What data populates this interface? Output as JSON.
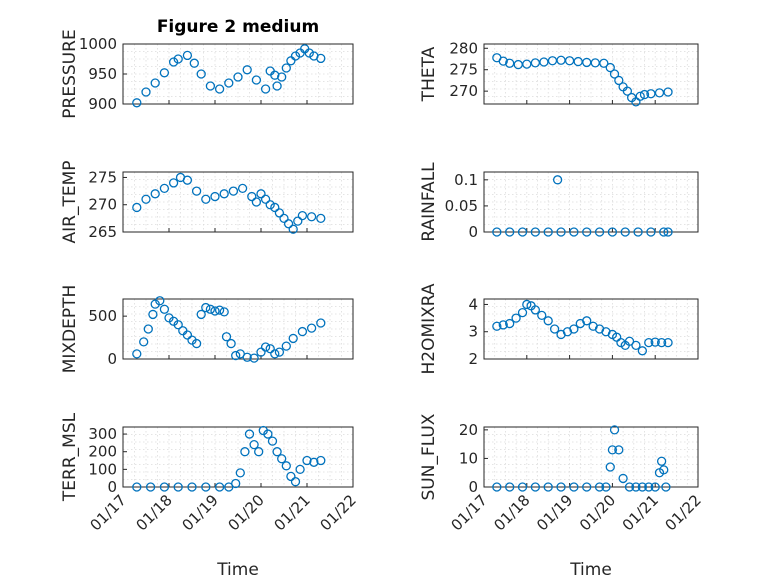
{
  "chart_data": [
    {
      "id": "pressure",
      "type": "scatter",
      "title": "Figure 2 medium",
      "ylabel": "PRESSURE",
      "ylim": [
        900,
        1000
      ],
      "yticks": [
        900,
        950,
        1000
      ],
      "yticklabels": [
        "900",
        "950",
        "1000"
      ],
      "x": [
        0.3,
        0.5,
        0.7,
        0.9,
        1.1,
        1.2,
        1.4,
        1.55,
        1.7,
        1.9,
        2.1,
        2.3,
        2.5,
        2.7,
        2.9,
        3.1,
        3.2,
        3.3,
        3.35,
        3.45,
        3.55,
        3.65,
        3.75,
        3.85,
        3.95,
        4.05,
        4.15,
        4.3
      ],
      "y": [
        902,
        920,
        935,
        952,
        970,
        975,
        981,
        968,
        950,
        930,
        925,
        935,
        945,
        957,
        940,
        925,
        955,
        948,
        930,
        945,
        960,
        972,
        980,
        985,
        992,
        985,
        980,
        976
      ]
    },
    {
      "id": "theta",
      "type": "scatter",
      "ylabel": "THETA",
      "ylim": [
        267,
        281
      ],
      "yticks": [
        270,
        275,
        280
      ],
      "yticklabels": [
        "270",
        "275",
        "280"
      ],
      "x": [
        0.3,
        0.45,
        0.6,
        0.8,
        1.0,
        1.2,
        1.4,
        1.6,
        1.8,
        2.0,
        2.2,
        2.4,
        2.6,
        2.8,
        2.95,
        3.05,
        3.15,
        3.25,
        3.35,
        3.45,
        3.55,
        3.65,
        3.75,
        3.9,
        4.1,
        4.3
      ],
      "y": [
        277.8,
        277.0,
        276.5,
        276.2,
        276.3,
        276.6,
        276.8,
        277.1,
        277.2,
        277.1,
        276.9,
        276.7,
        276.6,
        276.5,
        275.5,
        274.0,
        272.5,
        271.0,
        270.0,
        268.5,
        267.5,
        268.8,
        269.2,
        269.4,
        269.6,
        269.8
      ]
    },
    {
      "id": "air_temp",
      "type": "scatter",
      "ylabel": "AIR_TEMP",
      "ylim": [
        265,
        276
      ],
      "yticks": [
        265,
        270,
        275
      ],
      "yticklabels": [
        "265",
        "270",
        "275"
      ],
      "x": [
        0.3,
        0.5,
        0.7,
        0.9,
        1.1,
        1.25,
        1.4,
        1.6,
        1.8,
        2.0,
        2.2,
        2.4,
        2.6,
        2.8,
        2.9,
        3.0,
        3.1,
        3.2,
        3.3,
        3.4,
        3.5,
        3.6,
        3.7,
        3.8,
        3.9,
        4.1,
        4.3
      ],
      "y": [
        269.5,
        271.0,
        272.0,
        273.0,
        274.0,
        275.0,
        274.5,
        272.5,
        271.0,
        271.5,
        272.0,
        272.5,
        273.0,
        271.5,
        270.5,
        272.0,
        271.0,
        270.0,
        269.5,
        268.5,
        267.5,
        266.5,
        265.5,
        267.0,
        268.0,
        267.8,
        267.5
      ]
    },
    {
      "id": "rainfall",
      "type": "scatter",
      "ylabel": "RAINFALL",
      "ylim": [
        0,
        0.115
      ],
      "yticks": [
        0,
        0.05,
        0.1
      ],
      "yticklabels": [
        "0",
        "0.05",
        "0.1"
      ],
      "x": [
        0.3,
        0.6,
        0.9,
        1.2,
        1.5,
        1.8,
        2.1,
        2.4,
        2.7,
        3.0,
        3.3,
        3.6,
        3.9,
        4.2,
        4.3,
        1.72
      ],
      "y": [
        0,
        0,
        0,
        0,
        0,
        0,
        0,
        0,
        0,
        0,
        0,
        0,
        0,
        0,
        0,
        0.1
      ]
    },
    {
      "id": "mixdepth",
      "type": "scatter",
      "ylabel": "MIXDEPTH",
      "ylim": [
        0,
        700
      ],
      "yticks": [
        0,
        500
      ],
      "yticklabels": [
        "0",
        "500"
      ],
      "x": [
        0.3,
        0.45,
        0.55,
        0.65,
        0.7,
        0.8,
        0.9,
        1.0,
        1.1,
        1.2,
        1.3,
        1.4,
        1.5,
        1.6,
        1.7,
        1.8,
        1.9,
        2.0,
        2.1,
        2.2,
        2.25,
        2.35,
        2.45,
        2.55,
        2.7,
        2.85,
        3.0,
        3.1,
        3.2,
        3.3,
        3.4,
        3.55,
        3.7,
        3.9,
        4.1,
        4.3
      ],
      "y": [
        60,
        200,
        350,
        520,
        640,
        680,
        580,
        480,
        440,
        400,
        330,
        280,
        220,
        180,
        520,
        600,
        580,
        560,
        570,
        550,
        260,
        180,
        40,
        60,
        20,
        10,
        80,
        140,
        120,
        60,
        80,
        150,
        240,
        320,
        360,
        420
      ]
    },
    {
      "id": "h2omixra",
      "type": "scatter",
      "ylabel": "H2OMIXRA",
      "ylim": [
        2,
        4.2
      ],
      "yticks": [
        2,
        3,
        4
      ],
      "yticklabels": [
        "2",
        "3",
        "4"
      ],
      "x": [
        0.3,
        0.45,
        0.6,
        0.75,
        0.9,
        1.0,
        1.1,
        1.2,
        1.35,
        1.5,
        1.65,
        1.8,
        1.95,
        2.1,
        2.25,
        2.4,
        2.55,
        2.7,
        2.85,
        3.0,
        3.1,
        3.2,
        3.3,
        3.4,
        3.55,
        3.7,
        3.85,
        4.0,
        4.15,
        4.3
      ],
      "y": [
        3.2,
        3.25,
        3.3,
        3.5,
        3.7,
        4.0,
        3.95,
        3.8,
        3.6,
        3.4,
        3.1,
        2.9,
        3.0,
        3.1,
        3.3,
        3.4,
        3.2,
        3.1,
        3.0,
        2.9,
        2.8,
        2.6,
        2.5,
        2.65,
        2.5,
        2.3,
        2.6,
        2.62,
        2.6,
        2.6
      ]
    },
    {
      "id": "terr_msl",
      "type": "scatter",
      "ylabel": "TERR_MSL",
      "ylim": [
        0,
        340
      ],
      "yticks": [
        0,
        100,
        200,
        300
      ],
      "yticklabels": [
        "0",
        "100",
        "200",
        "300"
      ],
      "x": [
        0.3,
        0.6,
        0.9,
        1.2,
        1.5,
        1.8,
        2.1,
        2.3,
        2.45,
        2.55,
        2.65,
        2.75,
        2.85,
        2.95,
        3.05,
        3.15,
        3.25,
        3.35,
        3.45,
        3.55,
        3.65,
        3.75,
        3.85,
        4.0,
        4.15,
        4.3
      ],
      "y": [
        0,
        0,
        0,
        0,
        0,
        0,
        0,
        0,
        20,
        80,
        200,
        300,
        240,
        200,
        320,
        300,
        260,
        200,
        160,
        120,
        60,
        30,
        100,
        150,
        140,
        150
      ]
    },
    {
      "id": "sun_flux",
      "type": "scatter",
      "ylabel": "SUN_FLUX",
      "ylim": [
        0,
        21
      ],
      "yticks": [
        0,
        10,
        20
      ],
      "yticklabels": [
        "0",
        "10",
        "20"
      ],
      "x": [
        0.3,
        0.6,
        0.9,
        1.2,
        1.5,
        1.8,
        2.1,
        2.4,
        2.7,
        2.85,
        2.95,
        3.0,
        3.05,
        3.15,
        3.25,
        3.4,
        3.55,
        3.7,
        3.85,
        4.0,
        4.1,
        4.15,
        4.2,
        4.25
      ],
      "y": [
        0,
        0,
        0,
        0,
        0,
        0,
        0,
        0,
        0,
        0,
        7,
        13,
        20,
        13,
        3,
        0,
        0,
        0,
        0,
        0,
        5,
        9,
        6,
        0
      ]
    }
  ],
  "xaxis": {
    "xlim": [
      0,
      5
    ],
    "tick_values": [
      0,
      1,
      2,
      3,
      4,
      5
    ],
    "tick_labels": [
      "01/17",
      "01/18",
      "01/19",
      "01/20",
      "01/21",
      "01/22"
    ],
    "xlabel": "Time"
  },
  "colors": {
    "marker": "#0072bd",
    "axis": "#262626",
    "grid": "#dcdcdc"
  }
}
